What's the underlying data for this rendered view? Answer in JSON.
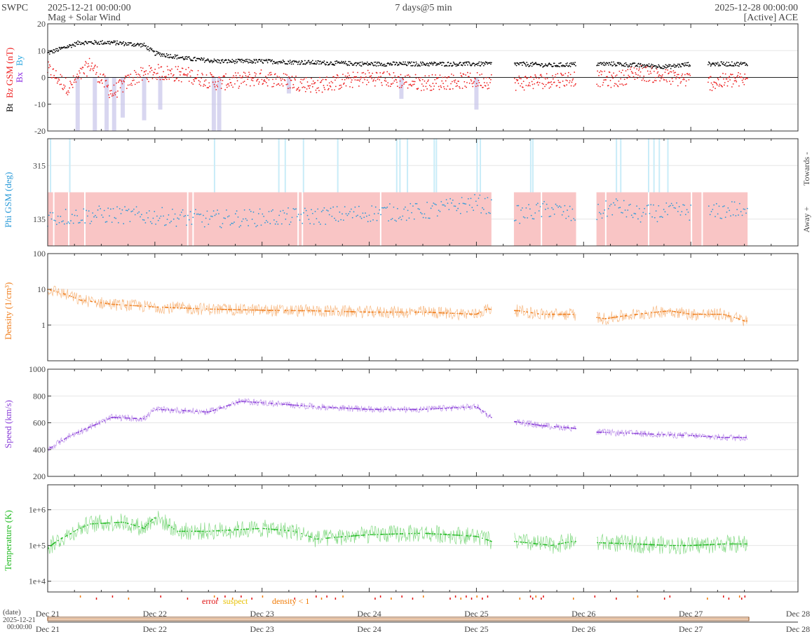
{
  "header": {
    "brand": "SWPC",
    "start_time": "2025-12-21 00:00:00",
    "title": "Mag + Solar Wind",
    "duration": "7 days@5 min",
    "end_time": "2025-12-28 00:00:00",
    "source": "[Active] ACE"
  },
  "colors": {
    "bt": "#000000",
    "bz": "#ee2020",
    "bx": "#8a2be2",
    "by": "#2aa7e0",
    "phi": "#2a9ad8",
    "density": "#f07f1e",
    "speed": "#8a3ed8",
    "temperature": "#22bb22",
    "away_band": "#f9c5c5",
    "toward_band": "#c9ecf8",
    "bz_fill": "#c8c4ea",
    "error": "#e01010",
    "suspect": "#e8c000",
    "density_flag": "#f07800"
  },
  "x_axis": {
    "ticks": [
      "Dec 21",
      "Dec 22",
      "Dec 23",
      "Dec 24",
      "Dec 25",
      "Dec 26",
      "Dec 27",
      "Dec 28"
    ],
    "date_label": "(date)",
    "nav_date": "2025-12-21",
    "nav_time": "00:00:00"
  },
  "legend_flags": {
    "error": "error",
    "suspect": "suspect",
    "density": "density < 1"
  },
  "chart_data": [
    {
      "type": "line",
      "ylabel_parts": [
        "Bt",
        "Bz GSM (nT)",
        "Bx",
        "By"
      ],
      "ylim": [
        -20,
        20
      ],
      "yticks": [
        "20",
        "10",
        "0",
        "-10",
        "-20"
      ],
      "x_range_days": [
        0,
        7
      ],
      "series": [
        {
          "name": "Bt",
          "x": [
            0,
            0.3,
            0.6,
            0.9,
            1.0,
            1.3,
            1.6,
            2.0,
            2.5,
            3.0,
            3.5,
            4.0,
            4.4,
            4.7,
            5.0,
            5.3,
            5.5,
            5.8,
            6.0,
            6.2,
            6.4,
            6.5
          ],
          "values": [
            9,
            13,
            13,
            12,
            9,
            7,
            6,
            6,
            5.5,
            5,
            5,
            5,
            5,
            4.5,
            5,
            5,
            4.5,
            4,
            5,
            5,
            5,
            5
          ]
        },
        {
          "name": "Bz GSM",
          "x": [
            0,
            0.2,
            0.4,
            0.6,
            0.8,
            1.0,
            1.3,
            1.6,
            2.0,
            2.5,
            3.0,
            3.5,
            4.0,
            4.4,
            4.7,
            5.0,
            5.3,
            5.5,
            5.8,
            6.0,
            6.2,
            6.4,
            6.5
          ],
          "values": [
            3,
            -4,
            5,
            -6,
            0,
            2,
            1,
            -2,
            0,
            -3,
            0,
            -2,
            -1,
            -2,
            -1,
            0,
            -1,
            2,
            0,
            -1,
            -2,
            -1,
            -1
          ]
        }
      ],
      "bands": [
        {
          "name": "Towards -",
          "type": "label"
        },
        {
          "name": "Away +",
          "type": "label"
        }
      ]
    },
    {
      "type": "scatter",
      "ylabel": "Phi GSM (deg)",
      "ylim": [
        45,
        405
      ],
      "yticks": [
        "315",
        "135"
      ],
      "labels": [
        "Towards -",
        "Away +"
      ],
      "series": [
        {
          "name": "Phi GSM",
          "x": [
            0,
            0.5,
            1.0,
            1.5,
            2.0,
            2.5,
            3.0,
            3.5,
            4.0,
            4.4,
            4.7,
            5.0,
            5.3,
            5.5,
            5.8,
            6.0,
            6.2,
            6.4,
            6.5
          ],
          "values": [
            140,
            150,
            145,
            135,
            140,
            145,
            155,
            160,
            190,
            150,
            170,
            135,
            180,
            150,
            160,
            160,
            155,
            170,
            150
          ]
        }
      ],
      "gaps_days": [
        [
          4.14,
          4.35
        ],
        [
          4.93,
          5.12
        ],
        [
          6.0,
          6.16
        ],
        [
          6.53,
          7.0
        ]
      ]
    },
    {
      "type": "line",
      "ylabel": "Density (1/cm³)",
      "yscale": "log",
      "ylim": [
        0.1,
        100
      ],
      "yticks": [
        "100",
        "10",
        "1"
      ],
      "series": [
        {
          "name": "Density",
          "x": [
            0,
            0.3,
            0.6,
            1.0,
            1.5,
            2.0,
            2.5,
            3.0,
            3.5,
            4.0,
            4.1,
            4.4,
            4.6,
            4.9,
            5.2,
            5.5,
            5.8,
            6.0,
            6.3,
            6.5
          ],
          "values": [
            10,
            5,
            3.8,
            3.2,
            2.8,
            2.6,
            2.5,
            2.3,
            2.3,
            2.0,
            2.8,
            2.5,
            2.0,
            2.0,
            1.5,
            2.0,
            2.5,
            2.0,
            2.0,
            1.3
          ]
        }
      ],
      "gaps_days": [
        [
          4.14,
          4.35
        ],
        [
          4.93,
          5.12
        ],
        [
          6.53,
          7.0
        ]
      ]
    },
    {
      "type": "line",
      "ylabel": "Speed (km/s)",
      "ylim": [
        200,
        1000
      ],
      "yticks": [
        "1000",
        "800",
        "600",
        "400",
        "200"
      ],
      "series": [
        {
          "name": "Speed",
          "x": [
            0,
            0.2,
            0.4,
            0.6,
            0.9,
            1.0,
            1.3,
            1.5,
            1.8,
            2.0,
            2.5,
            3.0,
            3.5,
            4.0,
            4.14,
            4.35,
            4.6,
            4.9,
            5.12,
            5.5,
            5.8,
            6.0,
            6.3,
            6.5
          ],
          "values": [
            400,
            500,
            570,
            640,
            630,
            700,
            690,
            680,
            760,
            750,
            720,
            700,
            700,
            720,
            640,
            610,
            580,
            560,
            530,
            520,
            510,
            505,
            490,
            490
          ]
        }
      ],
      "gaps_days": [
        [
          4.14,
          4.35
        ],
        [
          4.93,
          5.12
        ],
        [
          6.53,
          7.0
        ]
      ]
    },
    {
      "type": "line",
      "ylabel": "Temperature (K)",
      "yscale": "log",
      "ylim": [
        5000,
        5000000
      ],
      "yticks": [
        "1e+6",
        "1e+5",
        "1e+4"
      ],
      "series": [
        {
          "name": "Temperature",
          "x": [
            0,
            0.2,
            0.4,
            0.7,
            0.9,
            1.0,
            1.2,
            1.5,
            2.0,
            2.3,
            2.5,
            3.0,
            3.5,
            4.0,
            4.14,
            4.35,
            4.7,
            4.9,
            5.12,
            5.5,
            5.8,
            6.0,
            6.3,
            6.5
          ],
          "values": [
            80000,
            200000,
            400000,
            450000,
            300000,
            600000,
            250000,
            250000,
            300000,
            250000,
            150000,
            200000,
            220000,
            180000,
            130000,
            130000,
            100000,
            130000,
            120000,
            110000,
            100000,
            100000,
            110000,
            110000
          ]
        }
      ],
      "gaps_days": [
        [
          4.14,
          4.35
        ],
        [
          4.93,
          5.12
        ],
        [
          6.53,
          7.0
        ]
      ]
    }
  ]
}
